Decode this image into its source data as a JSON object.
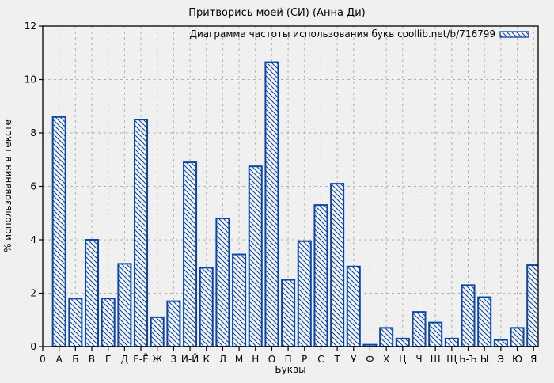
{
  "window": {
    "background": "#f0f0f0"
  },
  "chart_data": {
    "type": "bar",
    "title": "Притворись моей (СИ) (Анна Ди)",
    "legend": "Диаграмма частоты использования букв coollib.net/b/716799",
    "legend_position": "top-right-inside",
    "xlabel": "Буквы",
    "ylabel": "% использования в тексте",
    "origin_tick_label": "0",
    "ylim": [
      0,
      12
    ],
    "yticks": [
      0,
      2,
      4,
      6,
      8,
      10,
      12
    ],
    "grid": true,
    "bar_hatch": "diagonal-down",
    "categories": [
      "А",
      "Б",
      "В",
      "Г",
      "Д",
      "Е-Ё",
      "Ж",
      "З",
      "И-Й",
      "К",
      "Л",
      "М",
      "Н",
      "О",
      "П",
      "Р",
      "С",
      "Т",
      "У",
      "Ф",
      "Х",
      "Ц",
      "Ч",
      "Ш",
      "Щ",
      "Ь-Ъ",
      "Ы",
      "Э",
      "Ю",
      "Я"
    ],
    "values": [
      8.6,
      1.8,
      4.0,
      1.8,
      3.1,
      8.5,
      1.1,
      1.7,
      6.9,
      2.95,
      4.8,
      3.45,
      6.75,
      10.65,
      2.5,
      3.95,
      5.3,
      6.1,
      3.0,
      0.07,
      0.7,
      0.3,
      1.3,
      0.9,
      0.3,
      2.3,
      1.85,
      0.25,
      0.7,
      3.05
    ],
    "colors": {
      "bar_border": "#0b45a6",
      "bar_fill": "#f8f8f8",
      "grid": "#b0b0b0",
      "axis": "#000000",
      "text": "#000000",
      "background": "#f0f0f0"
    }
  }
}
